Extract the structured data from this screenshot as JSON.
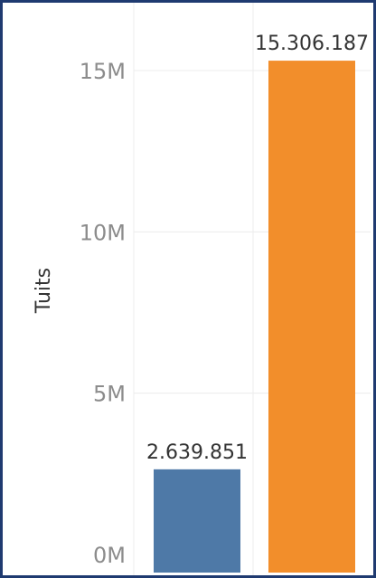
{
  "chart_data": {
    "type": "bar",
    "title": "",
    "xlabel": "",
    "ylabel": "Tuits",
    "ylim": [
      0,
      17000000
    ],
    "y_ticks": [
      {
        "value": 0,
        "label": "0M"
      },
      {
        "value": 5000000,
        "label": "5M"
      },
      {
        "value": 10000000,
        "label": "10M"
      },
      {
        "value": 15000000,
        "label": "15M"
      }
    ],
    "grid": true,
    "legend": "none",
    "bars": [
      {
        "value": 2639851,
        "label": "2.639.851",
        "color": "#4e79a7"
      },
      {
        "value": 15306187,
        "label": "15.306.187",
        "color": "#f28e2b"
      }
    ]
  },
  "colors": {
    "frame": "#1f3a70",
    "grid": "#ececec",
    "tick_text": "#8c8c8c",
    "axis_title": "#333333",
    "value_label": "#333333"
  }
}
